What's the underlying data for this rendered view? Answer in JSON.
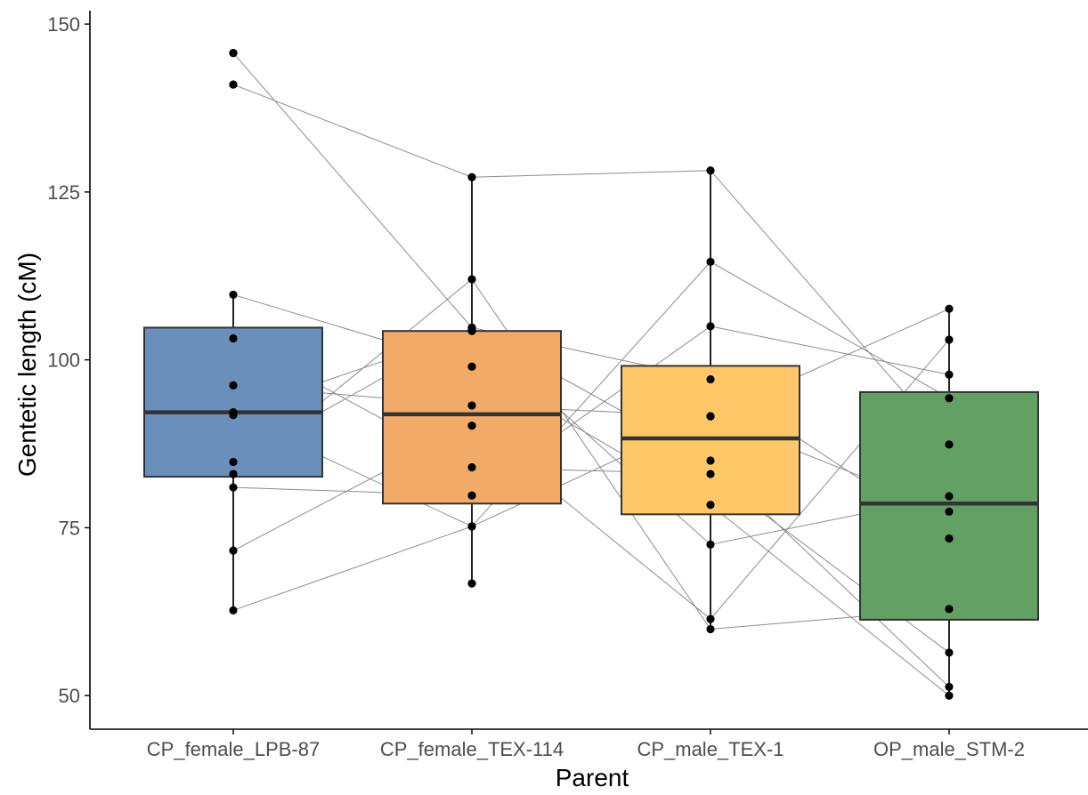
{
  "chart_data": {
    "type": "boxplot",
    "xlabel": "Parent",
    "ylabel": "Gentetic length (cM)",
    "ylim": [
      45,
      152
    ],
    "y_ticks": [
      50,
      75,
      100,
      125,
      150
    ],
    "grid": false,
    "legend": "none",
    "categories": [
      "CP_female_LPB-87",
      "CP_female_TEX-114",
      "CP_male_TEX-1",
      "OP_male_STM-2"
    ],
    "colors": [
      "#6a8fbb",
      "#f2aa68",
      "#fec869",
      "#63a064"
    ],
    "boxes": [
      {
        "q1": 82.6,
        "median": 92.2,
        "q3": 104.8,
        "whisker_low": 62.7,
        "whisker_high": 109.7
      },
      {
        "q1": 78.6,
        "median": 91.9,
        "q3": 104.3,
        "whisker_low": 66.7,
        "whisker_high": 127.2
      },
      {
        "q1": 77.0,
        "median": 88.3,
        "q3": 99.1,
        "whisker_low": 59.9,
        "whisker_high": 128.2
      },
      {
        "q1": 61.3,
        "median": 78.6,
        "q3": 95.2,
        "whisker_low": 50.0,
        "whisker_high": 107.6
      }
    ],
    "outliers": [
      {
        "category": "CP_female_LPB-87",
        "values": [
          141.0,
          145.7
        ]
      }
    ],
    "lines": [
      {
        "values": [
          145.7,
          104.8,
          85.0,
          51.3
        ]
      },
      {
        "values": [
          141.0,
          127.2,
          128.2,
          87.4
        ]
      },
      {
        "values": [
          109.7,
          99.0,
          78.4,
          50.0
        ]
      },
      {
        "values": [
          103.2,
          84.0,
          83.0,
          56.4
        ]
      },
      {
        "values": [
          96.2,
          93.2,
          91.6,
          77.4
        ]
      },
      {
        "values": [
          92.2,
          104.3,
          72.5,
          79.7
        ]
      },
      {
        "values": [
          91.8,
          75.2,
          114.6,
          94.3
        ]
      },
      {
        "values": [
          84.8,
          104.8,
          97.1,
          73.4
        ]
      },
      {
        "values": [
          83.0,
          112.0,
          59.9,
          62.9
        ]
      },
      {
        "values": [
          81.0,
          79.8,
          105.0,
          97.8
        ]
      },
      {
        "values": [
          71.6,
          90.2,
          61.4,
          103.0
        ]
      },
      {
        "values": [
          62.7,
          75.2,
          91.6,
          107.6
        ]
      },
      {
        "values": [
          null,
          66.7,
          null,
          null
        ]
      }
    ]
  }
}
